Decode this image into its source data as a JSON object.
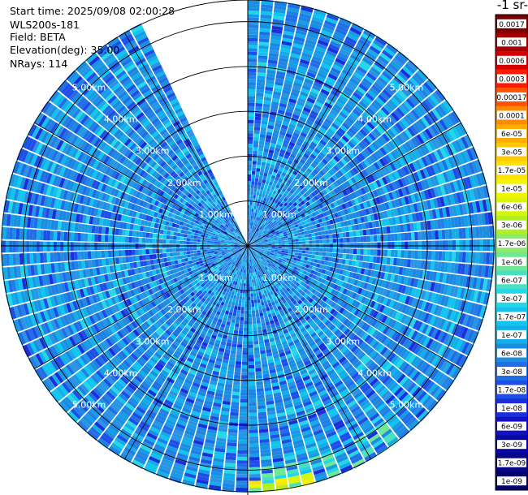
{
  "info": {
    "start_time": "Start time: 2025/09/08 02:00:28",
    "instrument": "WLS200s-181",
    "field": "Field: BETA",
    "elevation": "Elevation(deg): 35.00",
    "nrays": "NRays: 114"
  },
  "colorbar": {
    "title": "-1 sr-",
    "labels": [
      "0.0017",
      "0.001",
      "0.0006",
      "0.0003",
      "0.00017",
      "0.0001",
      "6e-05",
      "3e-05",
      "1.7e-05",
      "1e-05",
      "6e-06",
      "3e-06",
      "1.7e-06",
      "1e-06",
      "6e-07",
      "3e-07",
      "1.7e-07",
      "1e-07",
      "6e-08",
      "3e-08",
      "1.7e-08",
      "1e-08",
      "6e-09",
      "3e-09",
      "1.7e-09",
      "1e-09"
    ],
    "colors": [
      "#7a0000",
      "#a80000",
      "#d40000",
      "#ff1a00",
      "#ff5500",
      "#ff8a00",
      "#ffae00",
      "#ffc800",
      "#ffe200",
      "#f2f500",
      "#d8f50a",
      "#b0f020",
      "#8aeb6e",
      "#6ee896",
      "#48e0c0",
      "#22d8e6",
      "#10c4f0",
      "#12aee8",
      "#1a8ee0",
      "#1f6ee8",
      "#1e4ee8",
      "#1a2edc",
      "#1212c4",
      "#0808a4",
      "#060686",
      "#04046a"
    ]
  },
  "chart_data": {
    "type": "heatmap",
    "projection": "polar PPI",
    "field": "BETA",
    "elevation_deg": 35.0,
    "nrays": 114,
    "range_rings": [
      {
        "range_km": 1.0,
        "label": "1.00km"
      },
      {
        "range_km": 2.0,
        "label": "2.00km"
      },
      {
        "range_km": 3.0,
        "label": "3.00km"
      },
      {
        "range_km": 4.0,
        "label": "4.00km"
      },
      {
        "range_km": 5.0,
        "label": "5.00km"
      }
    ],
    "max_range_km": 5.5,
    "missing_sector_deg": [
      -25,
      0
    ],
    "dominant_value": "6e-08",
    "color_scale": "log",
    "color_min": "1e-09",
    "color_max": "0.0017"
  }
}
